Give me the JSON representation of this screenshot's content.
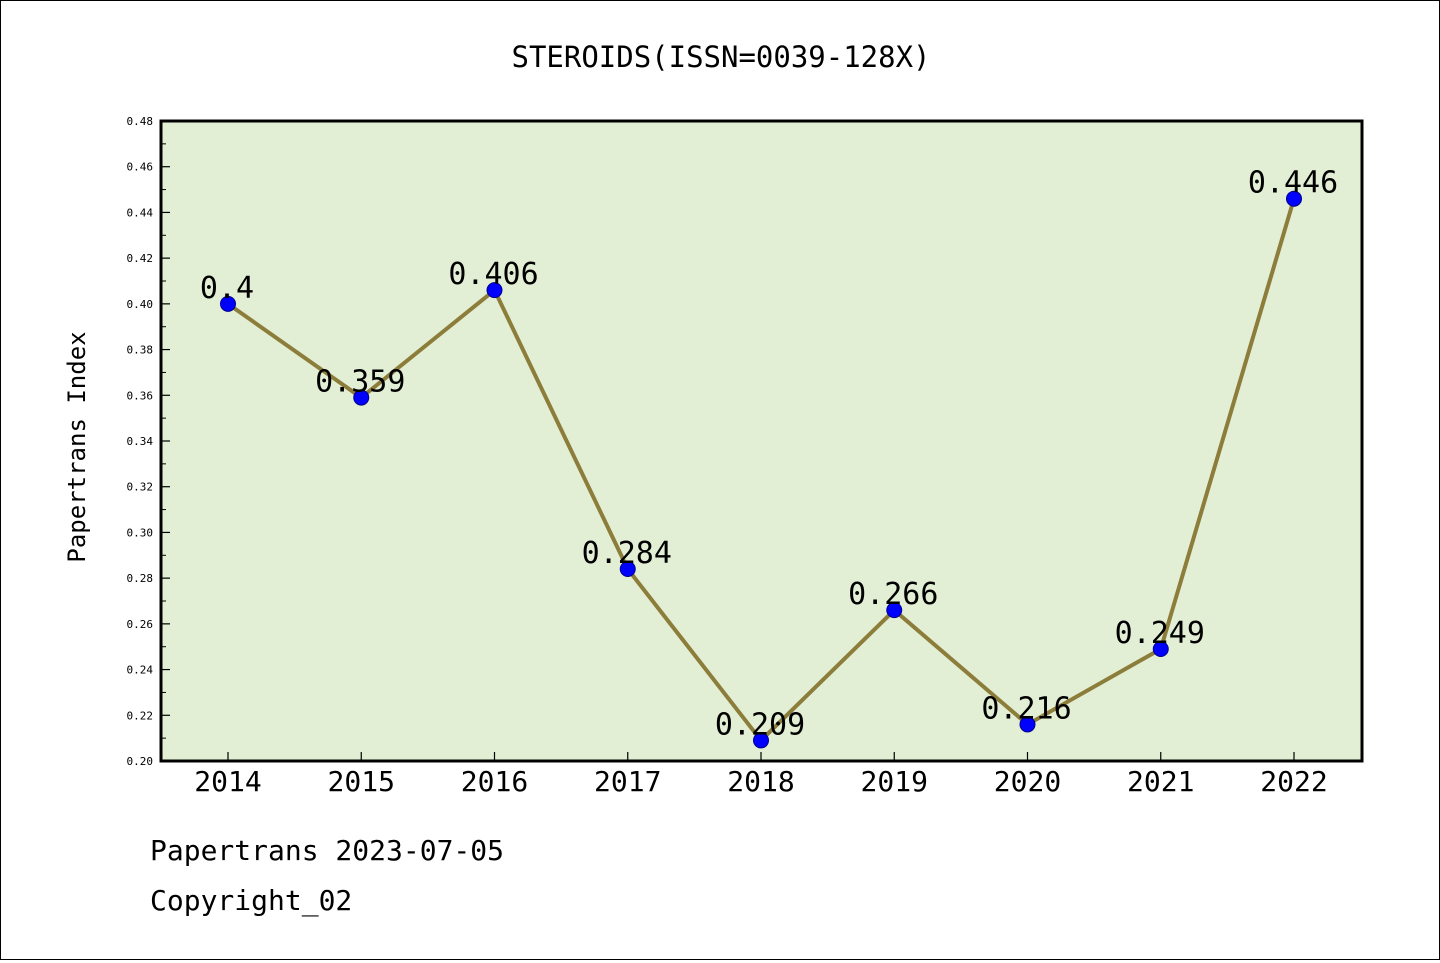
{
  "chart_data": {
    "type": "line",
    "title": "STEROIDS(ISSN=0039-128X)",
    "xlabel": "",
    "ylabel": "Papertrans Index",
    "categories": [
      "2014",
      "2015",
      "2016",
      "2017",
      "2018",
      "2019",
      "2020",
      "2021",
      "2022"
    ],
    "values": [
      0.4,
      0.359,
      0.406,
      0.284,
      0.209,
      0.266,
      0.216,
      0.249,
      0.446
    ],
    "data_labels": [
      "0.4",
      "0.359",
      "0.406",
      "0.284",
      "0.209",
      "0.266",
      "0.216",
      "0.249",
      "0.446"
    ],
    "ylim": [
      0.2,
      0.48
    ],
    "yticks": [
      "0.20",
      "0.22",
      "0.24",
      "0.26",
      "0.28",
      "0.30",
      "0.32",
      "0.34",
      "0.36",
      "0.38",
      "0.40",
      "0.42",
      "0.44",
      "0.46",
      "0.48"
    ],
    "grid": false,
    "legend": "none",
    "colors": {
      "plot_background": "#e2efd5",
      "line": "#8c7d3a",
      "marker": "#0000ff"
    }
  },
  "footer": {
    "line1": "Papertrans 2023-07-05",
    "line2": "Copyright_02"
  }
}
